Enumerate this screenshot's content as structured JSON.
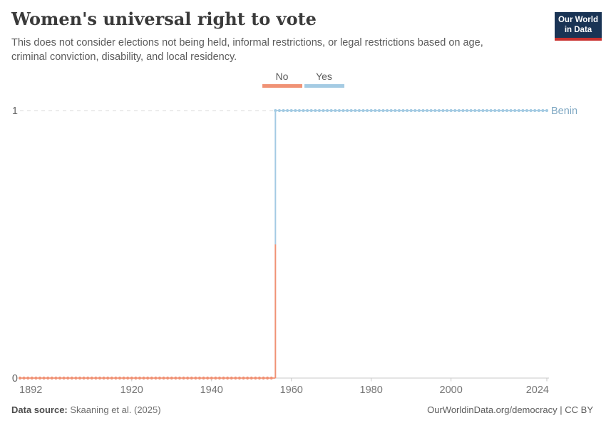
{
  "header": {
    "title": "Women's universal right to vote",
    "subtitle_lines": [
      "This does not consider elections not being held, informal restrictions, or legal restrictions based on age,",
      "criminal conviction, disability, and local residency."
    ]
  },
  "logo": {
    "line1": "Our World",
    "line2": "in Data",
    "bg_color": "#1a3455",
    "accent_color": "#c8302e"
  },
  "legend": {
    "items": [
      {
        "label": "No",
        "color": "#f09275"
      },
      {
        "label": "Yes",
        "color": "#a4cbe3"
      }
    ]
  },
  "chart_data": {
    "type": "line",
    "subtype": "step",
    "title": "Women's universal right to vote",
    "x_range": [
      1892,
      2024
    ],
    "ylim": [
      0,
      1
    ],
    "x_ticks": [
      1892,
      1920,
      1940,
      1960,
      1980,
      2000,
      2024
    ],
    "y_ticks": [
      0,
      1
    ],
    "grid": "dashed-line-at-1",
    "legend_position": "top-center",
    "series": [
      {
        "name": "Benin",
        "label_color": "#7fa8c3",
        "segments": [
          {
            "label": "No",
            "value": 0,
            "start_year": 1892,
            "end_year": 1955,
            "color": "#f09275"
          },
          {
            "label": "Yes",
            "value": 1,
            "start_year": 1956,
            "end_year": 2024,
            "color": "#a4cbe3"
          }
        ]
      }
    ]
  },
  "footer": {
    "source_label": "Data source:",
    "source_value": "Skaaning et al. (2025)",
    "credit": "OurWorldinData.org/democracy | CC BY"
  }
}
